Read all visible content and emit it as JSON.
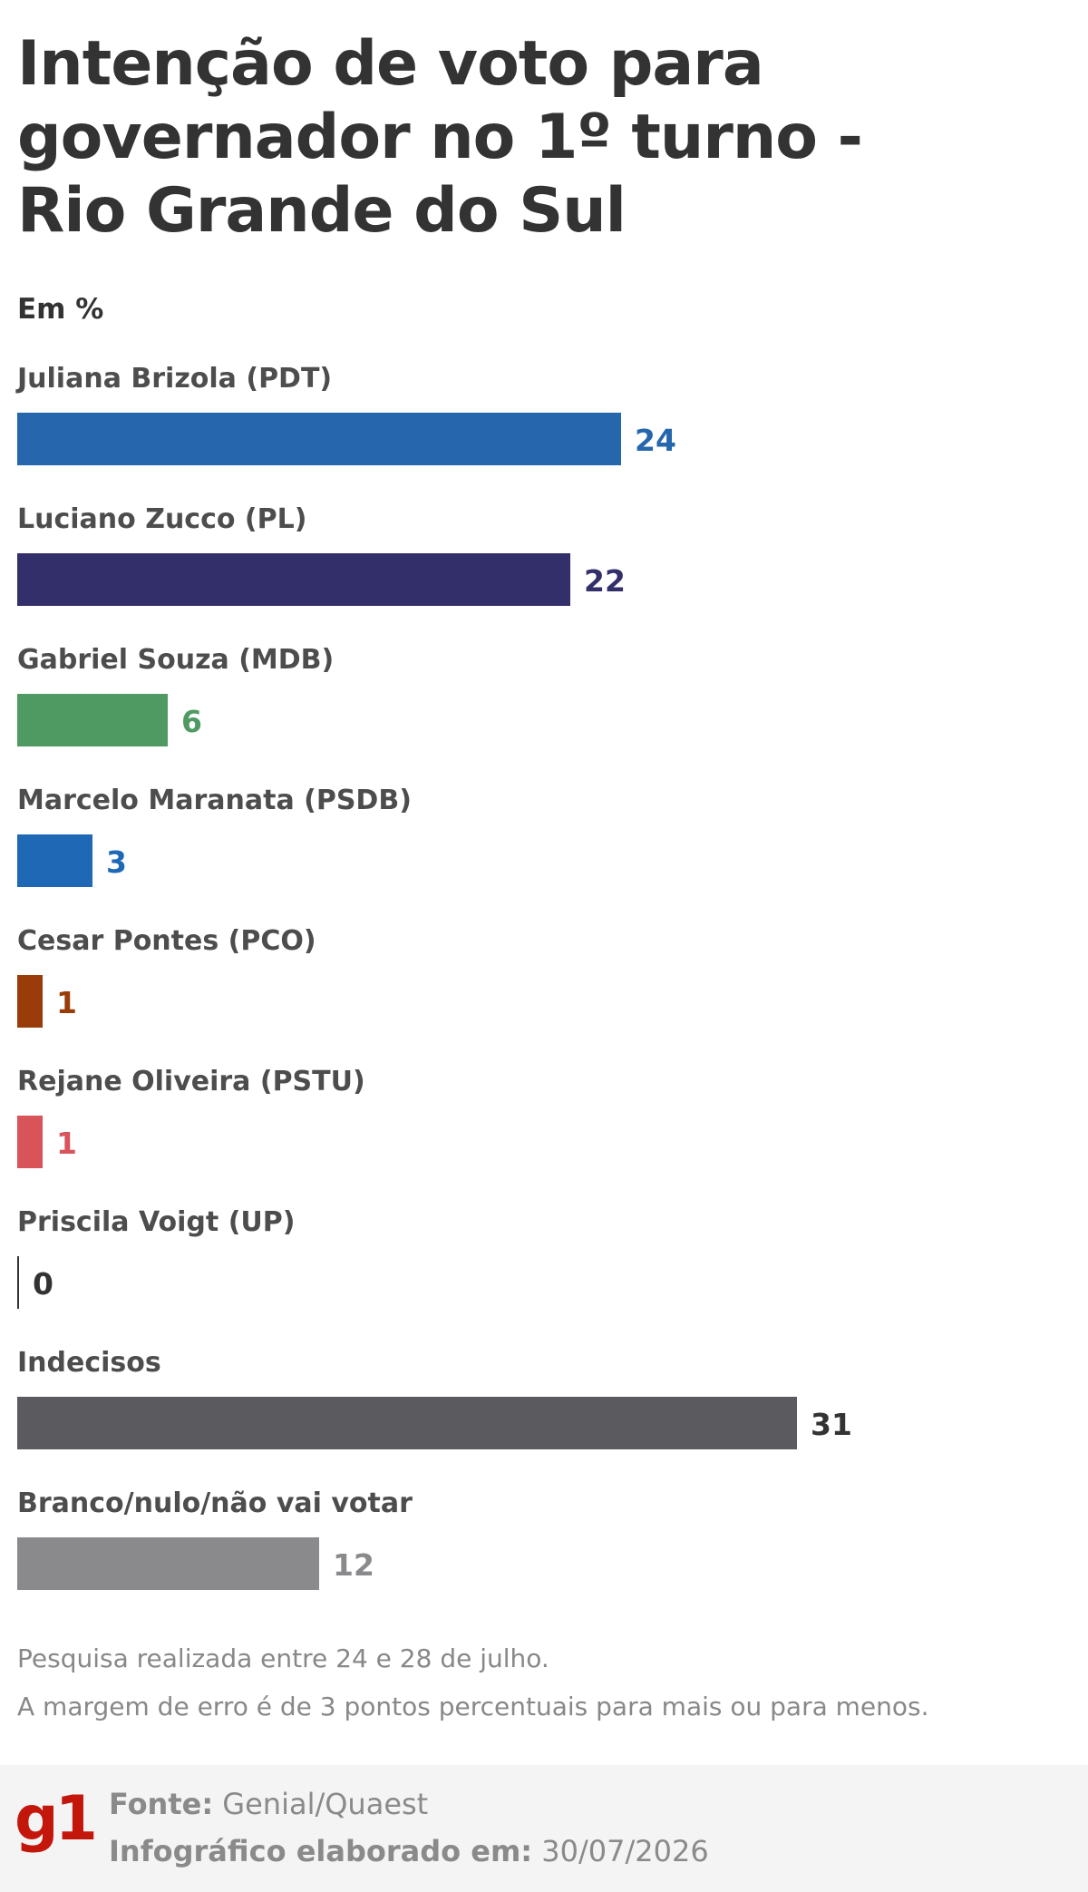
{
  "title": "Intenção de voto para governador no 1º turno - Rio Grande do Sul",
  "chart_data": {
    "type": "bar",
    "orientation": "horizontal",
    "unit_label": "Em %",
    "categories": [
      "Juliana Brizola (PDT)",
      "Luciano Zucco (PL)",
      "Gabriel Souza (MDB)",
      "Marcelo Maranata (PSDB)",
      "Cesar Pontes (PCO)",
      "Rejane Oliveira (PSTU)",
      "Priscila Voigt (UP)",
      "Indecisos",
      "Branco/nulo/não vai votar"
    ],
    "values": [
      24,
      22,
      6,
      3,
      1,
      1,
      0,
      31,
      12
    ],
    "colors": [
      "#2566ad",
      "#332f6b",
      "#4f9a63",
      "#1f68b5",
      "#9a3c0a",
      "#d9535a",
      "#333333",
      "#5b5a5e",
      "#8a898c"
    ],
    "value_label_colors": [
      "#2566ad",
      "#332f6b",
      "#4f9a63",
      "#1f68b5",
      "#9a3c0a",
      "#d9535a",
      "#333333",
      "#333333",
      "#8a898c"
    ],
    "xlim": [
      0,
      31
    ]
  },
  "notes": [
    "Pesquisa realizada entre 24 e 28 de julho.",
    "A margem de erro é de 3 pontos percentuais para mais ou para menos."
  ],
  "footer": {
    "logo": "g1",
    "source_label": "Fonte:",
    "source_value": "Genial/Quaest",
    "date_label": "Infográfico elaborado em:",
    "date_value": "30/07/2026"
  }
}
